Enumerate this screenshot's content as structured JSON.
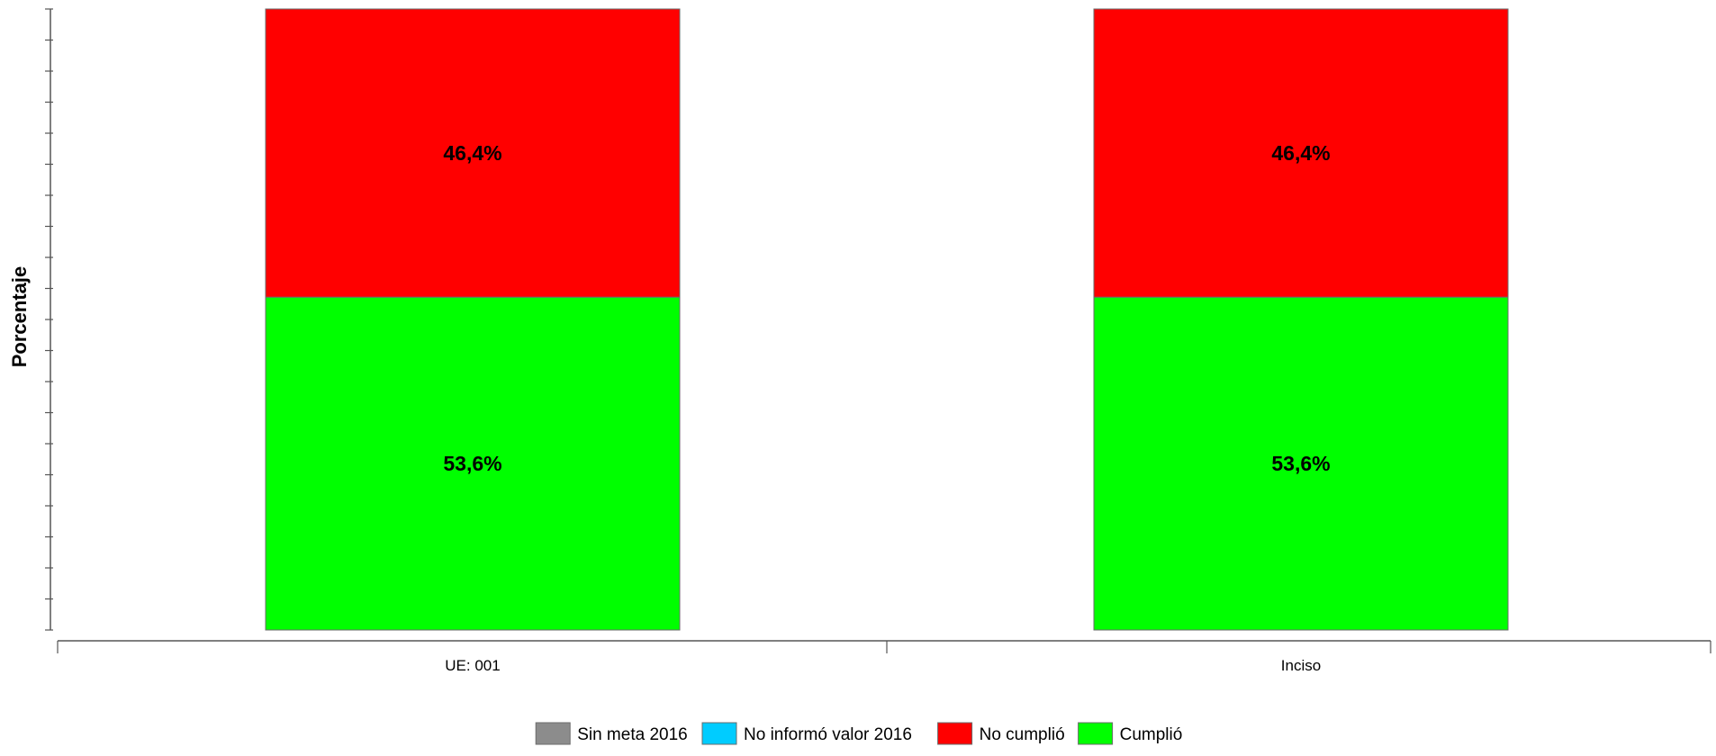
{
  "chart_data": {
    "type": "bar",
    "stacked": true,
    "ylabel": "Porcentaje",
    "xlabel": "",
    "ylim": [
      0,
      100
    ],
    "grid": false,
    "legend_position": "bottom-center",
    "categories": [
      "UE: 001",
      "Inciso"
    ],
    "series": [
      {
        "name": "Sin meta 2016",
        "color": "#8c8c8c",
        "values": [
          0,
          0
        ]
      },
      {
        "name": "No informó valor 2016",
        "color": "#00ccff",
        "values": [
          0,
          0
        ]
      },
      {
        "name": "No cumplió",
        "color": "#ff0000",
        "values": [
          46.4,
          46.4
        ]
      },
      {
        "name": "Cumplió",
        "color": "#00ff00",
        "values": [
          53.6,
          53.6
        ]
      }
    ],
    "data_labels": {
      "No cumplió": [
        "46,4%",
        "46,4%"
      ],
      "Cumplió": [
        "53,6%",
        "53,6%"
      ]
    }
  }
}
